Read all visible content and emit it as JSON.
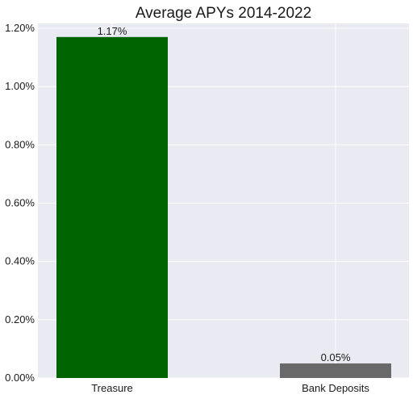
{
  "chart_data": {
    "type": "bar",
    "title": "Average APYs 2014-2022",
    "xlabel": "",
    "ylabel": "",
    "categories": [
      "Treasure",
      "Bank Deposits"
    ],
    "values": [
      1.17,
      0.05
    ],
    "value_labels": [
      "1.17%",
      "0.05%"
    ],
    "bar_colors": [
      "#006400",
      "#696969"
    ],
    "ylim": [
      0,
      1.2
    ],
    "yticks": [
      0,
      0.2,
      0.4,
      0.6,
      0.8,
      1.0,
      1.2
    ],
    "ytick_labels": [
      "0.00%",
      "0.20%",
      "0.40%",
      "0.60%",
      "0.80%",
      "1.00%",
      "1.20%"
    ],
    "grid": true,
    "legend": "none",
    "background": "#eaeaf2",
    "grid_color": "#ffffff"
  }
}
